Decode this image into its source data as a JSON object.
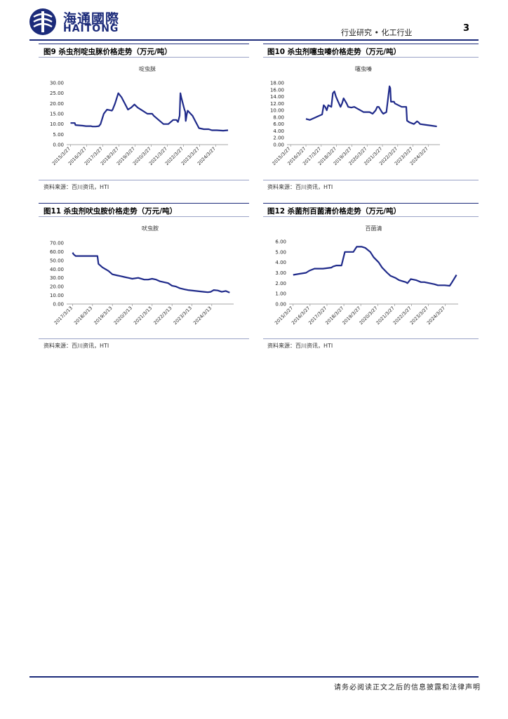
{
  "header": {
    "logo_cn": "海通國際",
    "logo_en": "HAITONG",
    "category": "行业研究 • 化工行业",
    "page_number": "3"
  },
  "figures": [
    {
      "title": "图9  杀虫剂啶虫脒价格走势（万元/吨）",
      "source": "资料来源：百川资讯，HTI"
    },
    {
      "title": "图10 杀虫剂噻虫嗪价格走势（万元/吨）",
      "source": "资料来源：百川资讯，HTI"
    },
    {
      "title": "图11 杀虫剂吠虫胺价格走势（万元/吨）",
      "source": "资料来源：百川资讯，HTI"
    },
    {
      "title": "图12 杀菌剂百菌清价格走势（万元/吨）",
      "source": "资料来源：百川资讯，HTI"
    }
  ],
  "footer": {
    "disclaimer": "请务必阅读正文之后的信息披露和法律声明"
  },
  "colors": {
    "brand": "#1c2b7a",
    "series": "#1f2a8a"
  },
  "chart_data": [
    {
      "type": "line",
      "title": "啶虫脒",
      "ylim": [
        0,
        30
      ],
      "yticks": [
        "0.00",
        "5.00",
        "10.00",
        "15.00",
        "20.00",
        "25.00",
        "30.00"
      ],
      "xlim": [
        2015.0,
        2025.0
      ],
      "xticks": [
        {
          "label": "2015/3/27",
          "x": 2015.24
        },
        {
          "label": "2016/3/27",
          "x": 2016.24
        },
        {
          "label": "2017/3/27",
          "x": 2017.24
        },
        {
          "label": "2018/3/27",
          "x": 2018.24
        },
        {
          "label": "2019/3/27",
          "x": 2019.24
        },
        {
          "label": "2020/3/27",
          "x": 2020.24
        },
        {
          "label": "2021/3/27",
          "x": 2021.24
        },
        {
          "label": "2022/3/27",
          "x": 2022.24
        },
        {
          "label": "2023/3/27",
          "x": 2023.24
        },
        {
          "label": "2024/3/27",
          "x": 2024.24
        }
      ],
      "series": [
        {
          "name": "啶虫脒",
          "x": [
            2015.24,
            2015.5,
            2015.55,
            2016.0,
            2016.2,
            2016.5,
            2016.6,
            2016.8,
            2017.0,
            2017.1,
            2017.2,
            2017.3,
            2017.5,
            2017.8,
            2017.85,
            2018.0,
            2018.2,
            2018.4,
            2018.6,
            2018.8,
            2019.0,
            2019.2,
            2019.4,
            2019.7,
            2020.0,
            2020.3,
            2020.4,
            2020.7,
            2021.0,
            2021.3,
            2021.6,
            2021.8,
            2021.9,
            2022.0,
            2022.05,
            2022.1,
            2022.3,
            2022.35,
            2022.38,
            2022.45,
            2022.5,
            2022.8,
            2023.0,
            2023.2,
            2023.5,
            2023.8,
            2024.0,
            2024.3,
            2024.7,
            2025.0
          ],
          "values": [
            10.5,
            10.5,
            9.5,
            9.2,
            9.0,
            9.0,
            8.8,
            8.8,
            9.0,
            10.0,
            12.5,
            15.0,
            17.0,
            16.5,
            17.0,
            20.0,
            25.0,
            23.0,
            20.0,
            17.0,
            18.0,
            19.5,
            18.0,
            16.5,
            15.0,
            15.0,
            14.0,
            12.0,
            10.0,
            10.0,
            12.0,
            12.0,
            11.0,
            14.0,
            25.0,
            23.0,
            17.0,
            16.0,
            11.5,
            15.0,
            16.5,
            14.0,
            11.0,
            8.0,
            7.5,
            7.5,
            7.0,
            7.0,
            6.8,
            7.0
          ]
        }
      ]
    },
    {
      "type": "line",
      "title": "噻虫嗪",
      "ylim": [
        0,
        18
      ],
      "yticks": [
        "0.00",
        "2.00",
        "4.00",
        "6.00",
        "8.00",
        "10.00",
        "12.00",
        "14.00",
        "16.00",
        "18.00"
      ],
      "xlim": [
        2015.0,
        2025.0
      ],
      "xticks": [
        {
          "label": "2015/3/27",
          "x": 2015.24
        },
        {
          "label": "2016/3/27",
          "x": 2016.24
        },
        {
          "label": "2017/3/27",
          "x": 2017.24
        },
        {
          "label": "2018/3/27",
          "x": 2018.24
        },
        {
          "label": "2019/3/27",
          "x": 2019.24
        },
        {
          "label": "2020/3/27",
          "x": 2020.24
        },
        {
          "label": "2021/3/27",
          "x": 2021.24
        },
        {
          "label": "2022/3/27",
          "x": 2022.24
        },
        {
          "label": "2023/3/27",
          "x": 2023.24
        },
        {
          "label": "2024/3/27",
          "x": 2024.24
        }
      ],
      "series": [
        {
          "name": "噻虫嗪",
          "x": [
            2016.24,
            2016.5,
            2016.8,
            2017.0,
            2017.3,
            2017.4,
            2017.5,
            2017.6,
            2017.7,
            2017.9,
            2018.0,
            2018.1,
            2018.2,
            2018.3,
            2018.5,
            2018.6,
            2018.7,
            2018.9,
            2019.0,
            2019.2,
            2019.4,
            2019.6,
            2019.8,
            2020.0,
            2020.2,
            2020.4,
            2020.6,
            2020.8,
            2020.9,
            2021.0,
            2021.2,
            2021.3,
            2021.5,
            2021.7,
            2021.75,
            2021.8,
            2022.0,
            2022.05,
            2022.5,
            2022.8,
            2022.85,
            2023.0,
            2023.3,
            2023.5,
            2023.6,
            2023.7,
            2024.0,
            2024.5,
            2024.8
          ],
          "values": [
            7.5,
            7.2,
            7.8,
            8.2,
            8.8,
            11.5,
            11.0,
            10.0,
            11.5,
            11.0,
            15.0,
            15.5,
            14.0,
            13.0,
            11.0,
            12.0,
            13.5,
            12.0,
            11.0,
            10.8,
            11.0,
            10.5,
            10.0,
            9.5,
            9.5,
            9.5,
            9.0,
            10.0,
            11.0,
            11.0,
            9.5,
            9.0,
            9.5,
            17.0,
            16.5,
            12.5,
            12.5,
            12.0,
            11.0,
            11.0,
            7.0,
            6.5,
            6.0,
            6.8,
            6.5,
            6.0,
            5.8,
            5.5,
            5.3
          ]
        }
      ]
    },
    {
      "type": "line",
      "title": "吠虫胺",
      "ylim": [
        0,
        70
      ],
      "yticks": [
        "0.00",
        "10.00",
        "20.00",
        "30.00",
        "40.00",
        "50.00",
        "60.00",
        "70.00"
      ],
      "xlim": [
        2016.9,
        2025.3
      ],
      "xticks": [
        {
          "label": "2017/3/13",
          "x": 2017.2
        },
        {
          "label": "2018/3/13",
          "x": 2018.2
        },
        {
          "label": "2019/3/13",
          "x": 2019.2
        },
        {
          "label": "2020/3/13",
          "x": 2020.2
        },
        {
          "label": "2021/3/13",
          "x": 2021.2
        },
        {
          "label": "2022/3/13",
          "x": 2022.2
        },
        {
          "label": "2023/3/13",
          "x": 2023.2
        },
        {
          "label": "2024/3/13",
          "x": 2024.2
        }
      ],
      "series": [
        {
          "name": "吠虫胺",
          "x": [
            2017.2,
            2017.25,
            2017.35,
            2017.5,
            2018.0,
            2018.2,
            2018.45,
            2018.5,
            2018.7,
            2019.0,
            2019.2,
            2019.4,
            2019.6,
            2019.8,
            2020.0,
            2020.2,
            2020.5,
            2020.8,
            2021.0,
            2021.2,
            2021.4,
            2021.6,
            2021.8,
            2022.0,
            2022.2,
            2022.4,
            2022.6,
            2022.8,
            2023.0,
            2023.4,
            2023.8,
            2024.0,
            2024.15,
            2024.3,
            2024.5,
            2024.7,
            2024.9,
            2025.1
          ],
          "values": [
            59.0,
            57.0,
            55.0,
            55.0,
            55.0,
            55.0,
            55.0,
            46.0,
            42.0,
            38.0,
            34.0,
            33.0,
            32.0,
            31.0,
            30.0,
            29.0,
            30.0,
            28.0,
            28.0,
            29.0,
            28.0,
            26.0,
            25.0,
            24.0,
            21.0,
            20.0,
            18.0,
            17.0,
            16.0,
            15.0,
            14.0,
            13.5,
            14.0,
            16.0,
            15.5,
            14.0,
            15.0,
            13.0
          ]
        }
      ]
    },
    {
      "type": "line",
      "title": "百菌清",
      "ylim": [
        0,
        6
      ],
      "yticks": [
        "0.00",
        "1.00",
        "2.00",
        "3.00",
        "4.00",
        "5.00",
        "6.00"
      ],
      "xlim": [
        2015.0,
        2025.0
      ],
      "xticks": [
        {
          "label": "2015/3/27",
          "x": 2015.24
        },
        {
          "label": "2016/3/27",
          "x": 2016.24
        },
        {
          "label": "2017/3/27",
          "x": 2017.24
        },
        {
          "label": "2018/3/27",
          "x": 2018.24
        },
        {
          "label": "2019/3/27",
          "x": 2019.24
        },
        {
          "label": "2020/3/27",
          "x": 2020.24
        },
        {
          "label": "2021/3/27",
          "x": 2021.24
        },
        {
          "label": "2022/3/27",
          "x": 2022.24
        },
        {
          "label": "2023/3/27",
          "x": 2023.24
        },
        {
          "label": "2024/3/27",
          "x": 2024.24
        }
      ],
      "series": [
        {
          "name": "百菌清",
          "x": [
            2015.24,
            2015.6,
            2016.0,
            2016.2,
            2016.5,
            2017.0,
            2017.5,
            2017.6,
            2017.8,
            2018.1,
            2018.3,
            2018.5,
            2018.8,
            2019.0,
            2019.3,
            2019.5,
            2019.8,
            2020.0,
            2020.3,
            2020.5,
            2020.8,
            2021.0,
            2021.3,
            2021.5,
            2021.7,
            2021.9,
            2022.0,
            2022.2,
            2022.5,
            2022.8,
            2023.0,
            2023.3,
            2023.6,
            2023.8,
            2024.0,
            2024.2,
            2024.5,
            2024.6,
            2024.75,
            2024.9
          ],
          "values": [
            2.8,
            2.9,
            3.0,
            3.2,
            3.4,
            3.4,
            3.5,
            3.6,
            3.7,
            3.7,
            5.0,
            5.0,
            5.0,
            5.5,
            5.5,
            5.4,
            5.0,
            4.5,
            4.0,
            3.5,
            3.0,
            2.7,
            2.5,
            2.3,
            2.2,
            2.1,
            2.0,
            2.4,
            2.3,
            2.1,
            2.1,
            2.0,
            1.9,
            1.8,
            1.8,
            1.8,
            1.75,
            2.0,
            2.4,
            2.8
          ]
        }
      ]
    }
  ]
}
